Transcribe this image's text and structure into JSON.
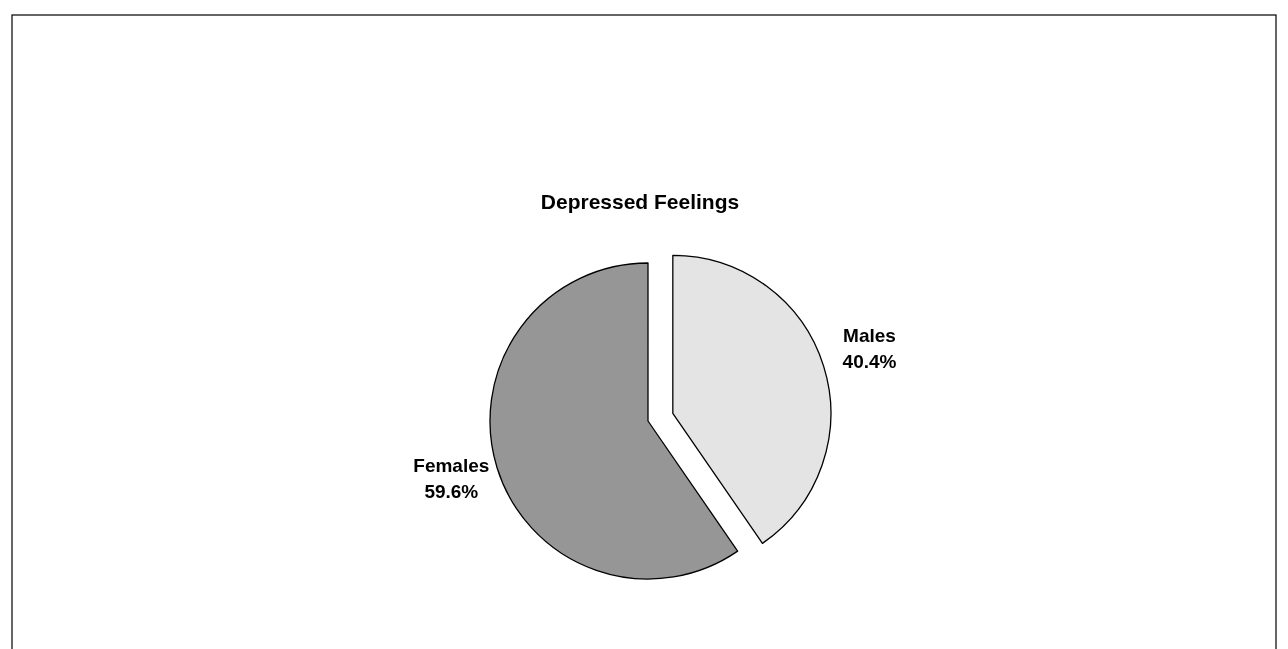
{
  "chart_data": {
    "type": "pie",
    "title": "Depressed Feelings",
    "categories": [
      "Males",
      "Females"
    ],
    "values": [
      40.4,
      59.6
    ],
    "colors": [
      "#e4e4e4",
      "#969696"
    ],
    "value_labels": [
      "40.4%",
      "59.6%"
    ]
  }
}
